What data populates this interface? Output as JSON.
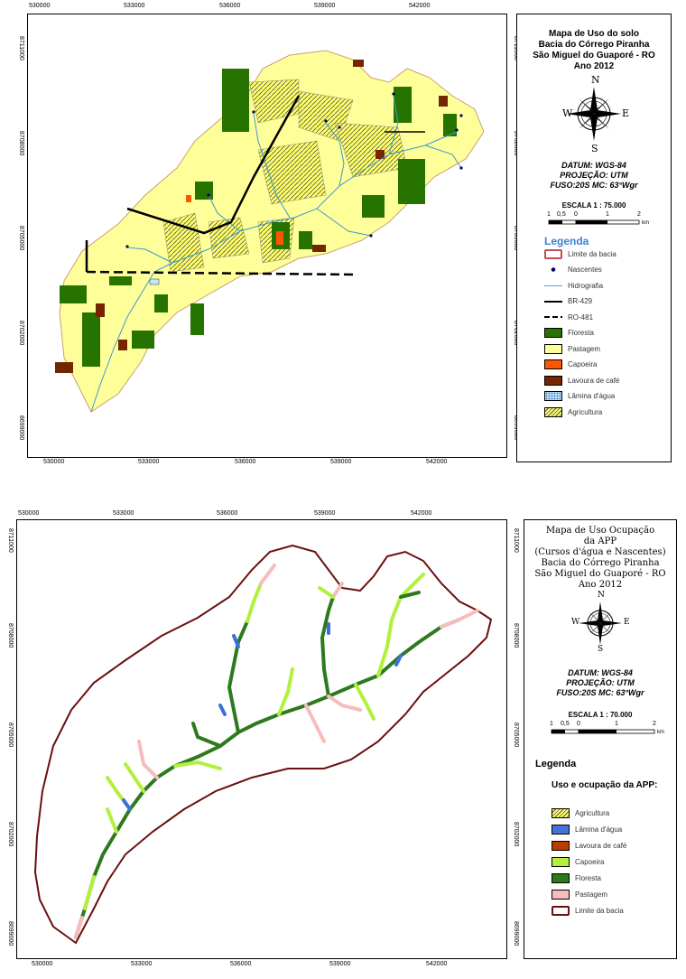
{
  "map1": {
    "x_ticks": [
      "530000",
      "533000",
      "536000",
      "539000",
      "542000"
    ],
    "y_ticks": [
      "8711000",
      "8708000",
      "8705000",
      "8702000",
      "8699000"
    ],
    "title_lines": [
      "Mapa de Uso do solo",
      "Bacia do Córrego Piranha",
      "São Miguel do Guaporé - RO",
      "Ano 2012"
    ],
    "compass": {
      "n": "N",
      "s": "S",
      "e": "E",
      "w": "W"
    },
    "info_lines": [
      "DATUM: WGS-84",
      "PROJEÇÃO: UTM",
      "FUSO:20S MC: 63°Wgr"
    ],
    "scale_title": "ESCALA 1 : 75.000",
    "scale_labels": [
      "1",
      "0,5",
      "0",
      "1",
      "2"
    ],
    "scale_unit": "km",
    "legend_title": "Legenda",
    "legend": [
      {
        "label": "Limite da bacia",
        "color": "#ffffff",
        "border": "#c0504d",
        "type": "box"
      },
      {
        "label": "Nascentes",
        "color": "#000066",
        "type": "dot"
      },
      {
        "label": "Hidrografia",
        "color": "#4aa6d8",
        "type": "line"
      },
      {
        "label": "BR-429",
        "color": "#000000",
        "type": "thick"
      },
      {
        "label": "RO-481",
        "color": "#000000",
        "type": "dash"
      },
      {
        "label": "Floresta",
        "color": "#267300",
        "type": "fill"
      },
      {
        "label": "Pastagem",
        "color": "#ffff99",
        "type": "fill"
      },
      {
        "label": "Capoeira",
        "color": "#ff5500",
        "type": "fill"
      },
      {
        "label": "Lavoura de café",
        "color": "#732600",
        "type": "fill"
      },
      {
        "label": "Lâmina d'água",
        "color": "#bee8ff",
        "type": "water"
      },
      {
        "label": "Agricultura",
        "color": "#ffff66",
        "type": "hatch"
      }
    ]
  },
  "map2": {
    "x_ticks": [
      "530000",
      "533000",
      "536000",
      "539000",
      "542000"
    ],
    "y_ticks": [
      "8711000",
      "8708000",
      "8705000",
      "8702000",
      "8699000"
    ],
    "title_lines": [
      "Mapa de Uso Ocupação",
      "da APP",
      "(Cursos d'água e Nascentes)",
      "Bacia do Córrego Piranha",
      "São Miguel do Guaporé - RO",
      "Ano 2012"
    ],
    "compass": {
      "n": "N",
      "s": "S",
      "e": "E",
      "w": "W"
    },
    "info_lines": [
      "DATUM: WGS-84",
      "PROJEÇÃO: UTM",
      "FUSO:20S MC: 63°Wgr"
    ],
    "scale_title": "ESCALA 1 : 70.000",
    "scale_labels": [
      "1",
      "0,5",
      "0",
      "1",
      "2"
    ],
    "scale_unit": "km",
    "legend_title": "Legenda",
    "legend_subtitle": "Uso e ocupação da APP:",
    "legend": [
      {
        "label": "Agricultura",
        "color": "#ffff66",
        "type": "hatch"
      },
      {
        "label": "Lâmina d'água",
        "color": "#3c6ee0",
        "type": "water"
      },
      {
        "label": "Lavoura de café",
        "color": "#b83c00",
        "type": "fill"
      },
      {
        "label": "Capoeira",
        "color": "#b2f03c",
        "type": "fill"
      },
      {
        "label": "Floresta",
        "color": "#2d7a1e",
        "type": "fill"
      },
      {
        "label": "Pastagem",
        "color": "#f7bcbc",
        "type": "fill"
      },
      {
        "label": "Limite da bacia",
        "color": "#ffffff",
        "border": "#6b0f0f",
        "type": "box"
      }
    ]
  }
}
